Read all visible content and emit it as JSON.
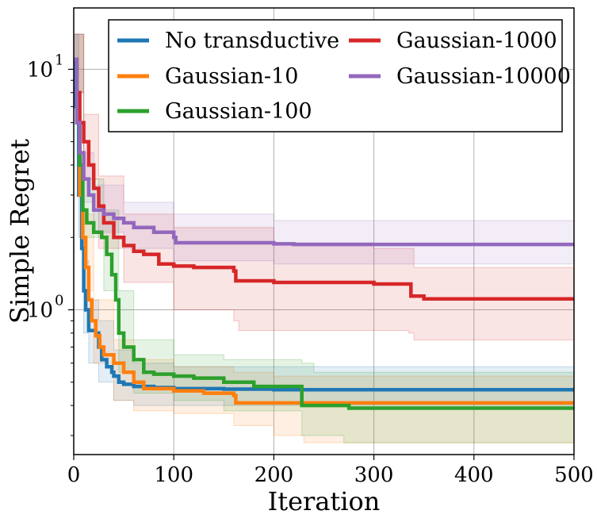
{
  "chart_data": {
    "type": "line",
    "xlabel": "Iteration",
    "ylabel": "Simple Regret",
    "xlim": [
      0,
      500
    ],
    "ylim": [
      0.25,
      18
    ],
    "yscale": "log",
    "grid": true,
    "legend_position": "top-right",
    "legend_columns": 2,
    "x_ticks": [
      {
        "value": 0,
        "label": "0"
      },
      {
        "value": 100,
        "label": "100"
      },
      {
        "value": 200,
        "label": "200"
      },
      {
        "value": 300,
        "label": "300"
      },
      {
        "value": 400,
        "label": "400"
      },
      {
        "value": 500,
        "label": "500"
      }
    ],
    "y_ticks": [
      {
        "value": 1,
        "label": "10",
        "exp": "0"
      },
      {
        "value": 10,
        "label": "10",
        "exp": "1"
      }
    ],
    "series": [
      {
        "name": "No transductive",
        "color": "#1f77b4",
        "points": [
          [
            0,
            11
          ],
          [
            2,
            7
          ],
          [
            5,
            3
          ],
          [
            8,
            1.8
          ],
          [
            10,
            1.2
          ],
          [
            12,
            1.0
          ],
          [
            15,
            0.82
          ],
          [
            22,
            0.8
          ],
          [
            25,
            0.7
          ],
          [
            28,
            0.62
          ],
          [
            33,
            0.58
          ],
          [
            38,
            0.55
          ],
          [
            40,
            0.53
          ],
          [
            45,
            0.5
          ],
          [
            50,
            0.49
          ],
          [
            60,
            0.48
          ],
          [
            80,
            0.475
          ],
          [
            100,
            0.47
          ],
          [
            150,
            0.468
          ],
          [
            200,
            0.465
          ],
          [
            500,
            0.465
          ]
        ],
        "upper": [
          [
            0,
            14
          ],
          [
            5,
            4.5
          ],
          [
            10,
            1.6
          ],
          [
            15,
            1.1
          ],
          [
            25,
            0.9
          ],
          [
            40,
            0.68
          ],
          [
            60,
            0.6
          ],
          [
            100,
            0.58
          ],
          [
            200,
            0.58
          ],
          [
            500,
            0.58
          ]
        ],
        "lower": [
          [
            0,
            8
          ],
          [
            5,
            2
          ],
          [
            10,
            0.8
          ],
          [
            15,
            0.6
          ],
          [
            25,
            0.5
          ],
          [
            40,
            0.42
          ],
          [
            60,
            0.4
          ],
          [
            100,
            0.4
          ],
          [
            200,
            0.4
          ],
          [
            500,
            0.4
          ]
        ]
      },
      {
        "name": "Gaussian-10",
        "color": "#ff7f0e",
        "points": [
          [
            0,
            11
          ],
          [
            3,
            6
          ],
          [
            6,
            3
          ],
          [
            9,
            2
          ],
          [
            12,
            1.5
          ],
          [
            15,
            1.1
          ],
          [
            18,
            0.9
          ],
          [
            22,
            0.78
          ],
          [
            26,
            0.7
          ],
          [
            30,
            0.65
          ],
          [
            40,
            0.6
          ],
          [
            50,
            0.55
          ],
          [
            60,
            0.5
          ],
          [
            70,
            0.47
          ],
          [
            100,
            0.46
          ],
          [
            130,
            0.45
          ],
          [
            160,
            0.44
          ],
          [
            162,
            0.41
          ],
          [
            200,
            0.41
          ],
          [
            500,
            0.41
          ]
        ],
        "upper": [
          [
            0,
            14
          ],
          [
            10,
            2.5
          ],
          [
            20,
            1.1
          ],
          [
            40,
            0.75
          ],
          [
            60,
            0.62
          ],
          [
            100,
            0.58
          ],
          [
            160,
            0.55
          ],
          [
            200,
            0.53
          ],
          [
            500,
            0.52
          ]
        ],
        "lower": [
          [
            0,
            8
          ],
          [
            10,
            1.2
          ],
          [
            20,
            0.6
          ],
          [
            40,
            0.42
          ],
          [
            60,
            0.38
          ],
          [
            100,
            0.37
          ],
          [
            160,
            0.33
          ],
          [
            200,
            0.3
          ],
          [
            230,
            0.28
          ],
          [
            500,
            0.28
          ]
        ]
      },
      {
        "name": "Gaussian-100",
        "color": "#2ca02c",
        "points": [
          [
            0,
            11
          ],
          [
            3,
            6
          ],
          [
            6,
            4
          ],
          [
            9,
            2.6
          ],
          [
            13,
            2.3
          ],
          [
            20,
            2.1
          ],
          [
            28,
            2.0
          ],
          [
            33,
            1.7
          ],
          [
            38,
            1.4
          ],
          [
            42,
            1.1
          ],
          [
            45,
            0.8
          ],
          [
            50,
            0.7
          ],
          [
            60,
            0.62
          ],
          [
            70,
            0.55
          ],
          [
            80,
            0.54
          ],
          [
            100,
            0.53
          ],
          [
            120,
            0.52
          ],
          [
            150,
            0.5
          ],
          [
            180,
            0.48
          ],
          [
            225,
            0.48
          ],
          [
            228,
            0.4
          ],
          [
            260,
            0.4
          ],
          [
            275,
            0.39
          ],
          [
            500,
            0.39
          ]
        ],
        "upper": [
          [
            0,
            14
          ],
          [
            10,
            3.5
          ],
          [
            30,
            2.6
          ],
          [
            45,
            1.2
          ],
          [
            60,
            0.75
          ],
          [
            100,
            0.65
          ],
          [
            150,
            0.62
          ],
          [
            228,
            0.6
          ],
          [
            240,
            0.55
          ],
          [
            500,
            0.55
          ]
        ],
        "lower": [
          [
            0,
            8
          ],
          [
            10,
            2.0
          ],
          [
            30,
            1.2
          ],
          [
            45,
            0.55
          ],
          [
            60,
            0.45
          ],
          [
            100,
            0.42
          ],
          [
            150,
            0.38
          ],
          [
            228,
            0.3
          ],
          [
            270,
            0.28
          ],
          [
            500,
            0.28
          ]
        ]
      },
      {
        "name": "Gaussian-1000",
        "color": "#d62728",
        "points": [
          [
            0,
            11
          ],
          [
            3,
            8
          ],
          [
            6,
            6
          ],
          [
            10,
            5
          ],
          [
            15,
            4
          ],
          [
            20,
            3.2
          ],
          [
            25,
            2.7
          ],
          [
            30,
            2.3
          ],
          [
            40,
            2.0
          ],
          [
            50,
            1.85
          ],
          [
            60,
            1.75
          ],
          [
            70,
            1.7
          ],
          [
            85,
            1.55
          ],
          [
            100,
            1.52
          ],
          [
            120,
            1.5
          ],
          [
            160,
            1.45
          ],
          [
            162,
            1.32
          ],
          [
            200,
            1.3
          ],
          [
            280,
            1.3
          ],
          [
            300,
            1.28
          ],
          [
            335,
            1.28
          ],
          [
            337,
            1.14
          ],
          [
            350,
            1.11
          ],
          [
            500,
            1.11
          ]
        ],
        "upper": [
          [
            0,
            14
          ],
          [
            10,
            6.5
          ],
          [
            25,
            3.6
          ],
          [
            50,
            2.5
          ],
          [
            100,
            2.2
          ],
          [
            200,
            1.9
          ],
          [
            300,
            1.8
          ],
          [
            335,
            1.8
          ],
          [
            340,
            1.5
          ],
          [
            500,
            1.5
          ]
        ],
        "lower": [
          [
            0,
            8
          ],
          [
            10,
            3.5
          ],
          [
            25,
            1.8
          ],
          [
            50,
            1.3
          ],
          [
            100,
            1.0
          ],
          [
            160,
            0.9
          ],
          [
            165,
            0.82
          ],
          [
            200,
            0.82
          ],
          [
            335,
            0.8
          ],
          [
            340,
            0.75
          ],
          [
            500,
            0.75
          ]
        ]
      },
      {
        "name": "Gaussian-10000",
        "color": "#9467bd",
        "points": [
          [
            0,
            11
          ],
          [
            3,
            6
          ],
          [
            6,
            4.5
          ],
          [
            10,
            3.5
          ],
          [
            15,
            3.0
          ],
          [
            20,
            2.6
          ],
          [
            30,
            2.5
          ],
          [
            40,
            2.4
          ],
          [
            50,
            2.3
          ],
          [
            60,
            2.2
          ],
          [
            80,
            2.1
          ],
          [
            100,
            2.0
          ],
          [
            102,
            1.9
          ],
          [
            150,
            1.9
          ],
          [
            200,
            1.88
          ],
          [
            220,
            1.87
          ],
          [
            500,
            1.87
          ]
        ],
        "upper": [
          [
            0,
            14
          ],
          [
            10,
            4.5
          ],
          [
            20,
            3.3
          ],
          [
            50,
            2.8
          ],
          [
            100,
            2.5
          ],
          [
            200,
            2.35
          ],
          [
            500,
            2.3
          ]
        ],
        "lower": [
          [
            0,
            8
          ],
          [
            10,
            2.8
          ],
          [
            20,
            2.1
          ],
          [
            50,
            1.8
          ],
          [
            100,
            1.6
          ],
          [
            200,
            1.55
          ],
          [
            500,
            1.55
          ]
        ]
      }
    ]
  }
}
